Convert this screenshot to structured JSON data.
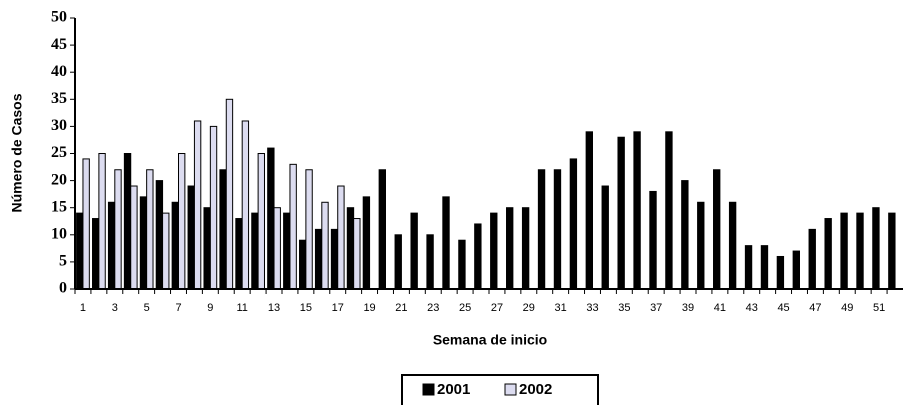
{
  "chart_data": {
    "type": "bar",
    "x_label": "Semana de inicio",
    "y_label": "Número de Casos",
    "categories": [
      "1",
      null,
      "3",
      null,
      "5",
      null,
      "7",
      null,
      "9",
      null,
      "11",
      null,
      "13",
      null,
      "15",
      null,
      "17",
      null,
      "19",
      null,
      "21",
      null,
      "23",
      null,
      "25",
      null,
      "27",
      null,
      "29",
      null,
      "31",
      null,
      "33",
      null,
      "35",
      null,
      "37",
      null,
      "39",
      null,
      "41",
      null,
      "43",
      null,
      "45",
      null,
      "47",
      null,
      "49",
      null,
      "51",
      null
    ],
    "series": [
      {
        "name": "2001",
        "color": "#000000",
        "values": [
          14,
          13,
          16,
          25,
          17,
          20,
          16,
          19,
          15,
          22,
          13,
          14,
          26,
          14,
          9,
          11,
          11,
          15,
          17,
          22,
          10,
          14,
          10,
          17,
          9,
          12,
          14,
          15,
          15,
          22,
          22,
          24,
          29,
          19,
          28,
          29,
          18,
          29,
          20,
          16,
          22,
          16,
          8,
          8,
          6,
          7,
          11,
          13,
          14,
          14,
          15,
          14
        ]
      },
      {
        "name": "2002",
        "color": "#dcdcf0",
        "values": [
          24,
          25,
          22,
          19,
          22,
          14,
          25,
          31,
          30,
          35,
          31,
          25,
          15,
          23,
          22,
          16,
          19,
          13,
          null,
          null,
          null,
          null,
          null,
          null,
          null,
          null,
          null,
          null,
          null,
          null,
          null,
          null,
          null,
          null,
          null,
          null,
          null,
          null,
          null,
          null,
          null,
          null,
          null,
          null,
          null,
          null,
          null,
          null,
          null,
          null,
          null,
          null
        ]
      }
    ],
    "ylim": [
      0,
      50
    ],
    "yticks": [
      0,
      5,
      10,
      15,
      20,
      25,
      30,
      35,
      40,
      45,
      50
    ],
    "legend": "bottom"
  }
}
